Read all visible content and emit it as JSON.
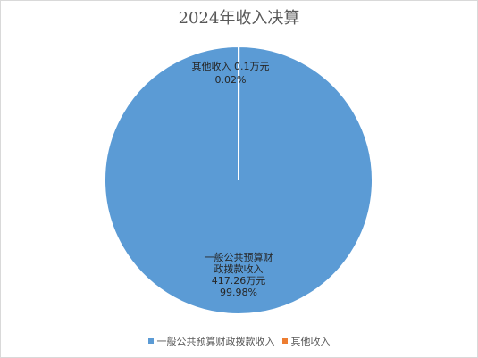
{
  "chart_data": {
    "type": "pie",
    "title": "2024年收入决算",
    "unit": "万元",
    "slices": [
      {
        "name": "一般公共预算财政拨款收入",
        "label_lines": [
          "一般公共预算财",
          "政拨款收入"
        ],
        "value": 417.26,
        "value_label": "417.26万元",
        "percent_label": "99.98%",
        "color": "#5b9bd5"
      },
      {
        "name": "其他收入",
        "label_lines": [
          "其他收入"
        ],
        "value": 0.1,
        "value_label": "0.1万元",
        "percent_label": "0.02%",
        "color": "#ed7d31"
      }
    ],
    "legend": {
      "position": "bottom",
      "items": [
        "一般公共预算财政拨款收入",
        "其他收入"
      ]
    }
  }
}
